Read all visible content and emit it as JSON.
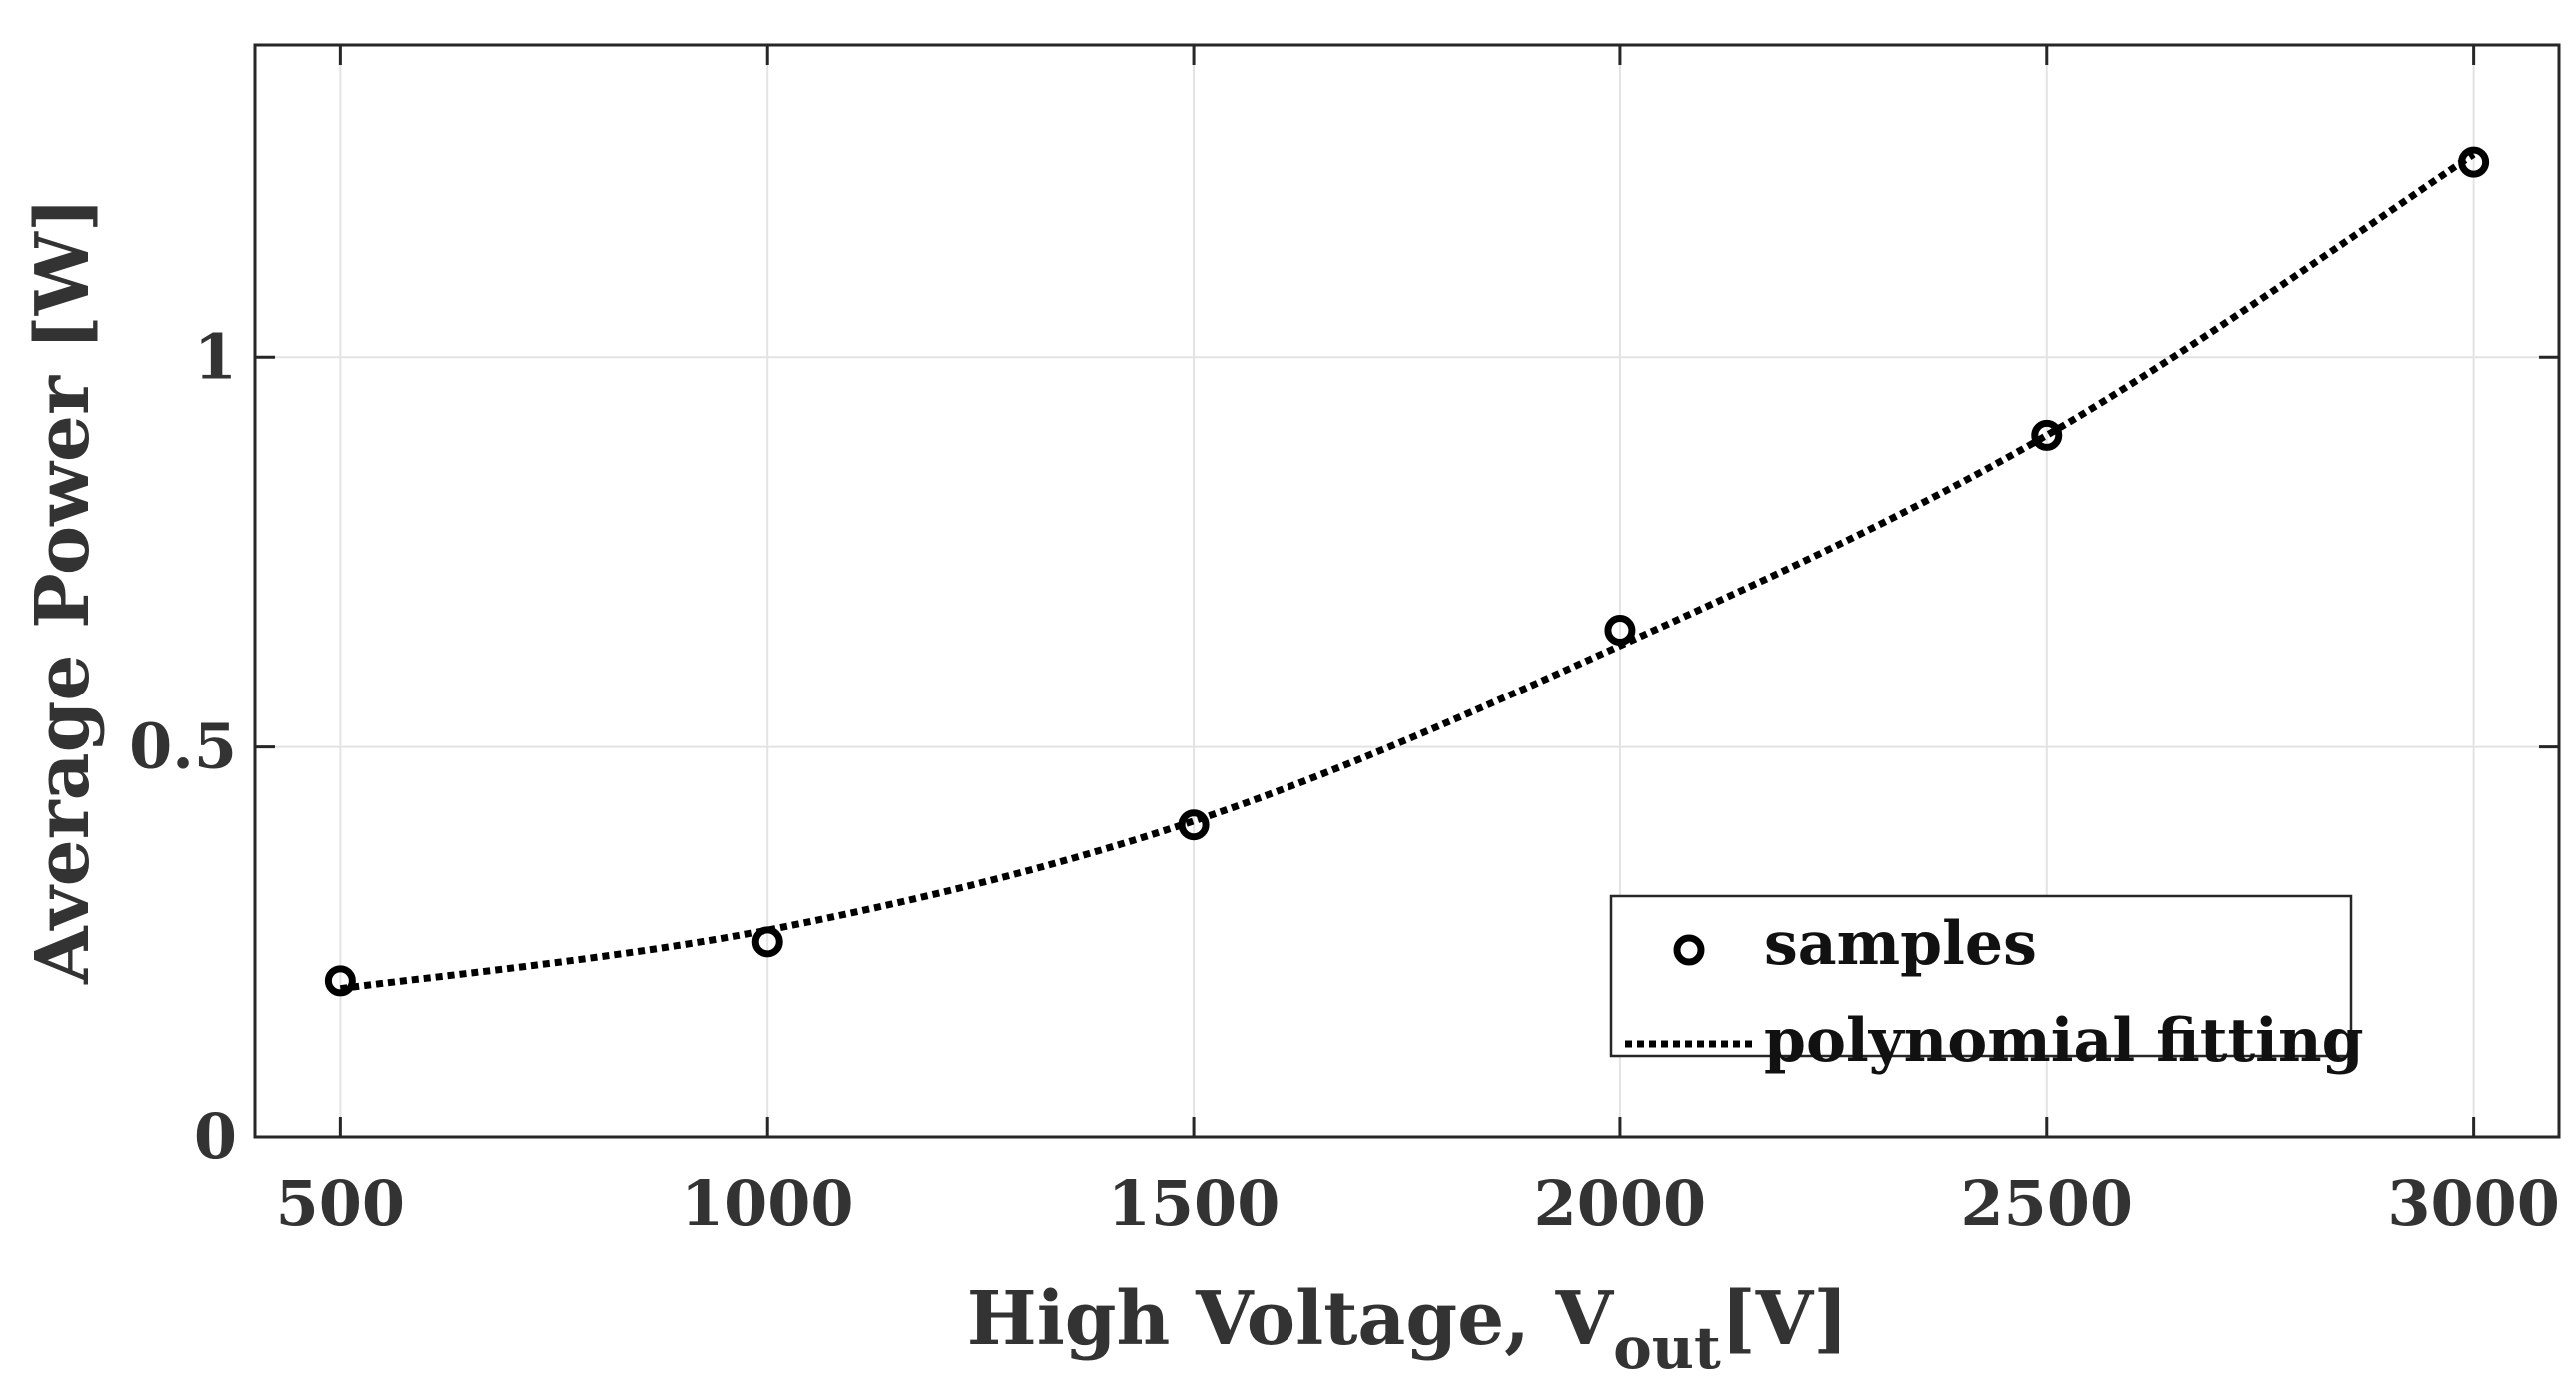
{
  "chart_data": {
    "type": "scatter",
    "title": "",
    "xlabel": "High Voltage, V",
    "xlabel_subscript": "out",
    "xlabel_unit": "[V]",
    "ylabel": "Average Power [W]",
    "xlim": [
      400,
      3100
    ],
    "ylim": [
      0,
      1.4
    ],
    "xticks": [
      500,
      1000,
      1500,
      2000,
      2500,
      3000
    ],
    "xtick_labels": [
      "500",
      "1000",
      "1500",
      "2000",
      "2500",
      "3000"
    ],
    "yticks": [
      0,
      0.5,
      1
    ],
    "ytick_labels": [
      "0",
      "0.5",
      "1"
    ],
    "grid": true,
    "legend_position": "bottom-right",
    "series": [
      {
        "name": "samples",
        "style": "circle-marker",
        "x": [
          500,
          1000,
          1500,
          2000,
          2500,
          3000
        ],
        "y": [
          0.2,
          0.25,
          0.4,
          0.65,
          0.9,
          1.25
        ]
      },
      {
        "name": "polynomial fitting",
        "style": "dotted-line",
        "x": [
          500,
          1000,
          1500,
          2000,
          2500,
          3000
        ],
        "y": [
          0.19,
          0.265,
          0.405,
          0.63,
          0.9,
          1.26
        ]
      }
    ]
  }
}
